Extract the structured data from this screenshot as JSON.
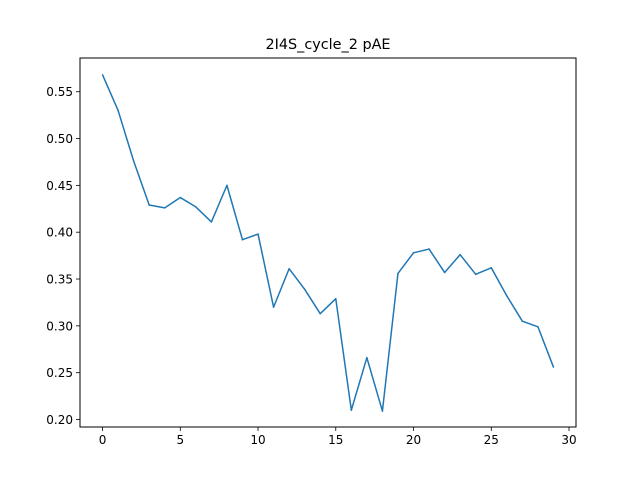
{
  "chart_data": {
    "type": "line",
    "title": "2I4S_cycle_2 pAE",
    "xlabel": "",
    "ylabel": "",
    "xlim": [
      -1.45,
      30.45
    ],
    "ylim": [
      0.192,
      0.586
    ],
    "x_ticks": [
      0,
      5,
      10,
      15,
      20,
      25,
      30
    ],
    "y_ticks": [
      0.2,
      0.25,
      0.3,
      0.35,
      0.4,
      0.45,
      0.5,
      0.55
    ],
    "x_tick_labels": [
      "0",
      "5",
      "10",
      "15",
      "20",
      "25",
      "30"
    ],
    "y_tick_labels": [
      "0.20",
      "0.25",
      "0.30",
      "0.35",
      "0.40",
      "0.45",
      "0.50",
      "0.55"
    ],
    "grid": false,
    "series": [
      {
        "color": "#1f77b4",
        "x": [
          0,
          1,
          2,
          3,
          4,
          5,
          6,
          7,
          8,
          9,
          10,
          11,
          12,
          13,
          14,
          15,
          16,
          17,
          18,
          19,
          20,
          21,
          22,
          23,
          24,
          25,
          26,
          27,
          28,
          29
        ],
        "y": [
          0.568,
          0.53,
          0.476,
          0.429,
          0.426,
          0.437,
          0.427,
          0.411,
          0.45,
          0.392,
          0.398,
          0.32,
          0.361,
          0.339,
          0.313,
          0.329,
          0.21,
          0.266,
          0.209,
          0.356,
          0.378,
          0.382,
          0.357,
          0.376,
          0.355,
          0.362,
          0.332,
          0.305,
          0.299,
          0.256
        ]
      }
    ]
  }
}
